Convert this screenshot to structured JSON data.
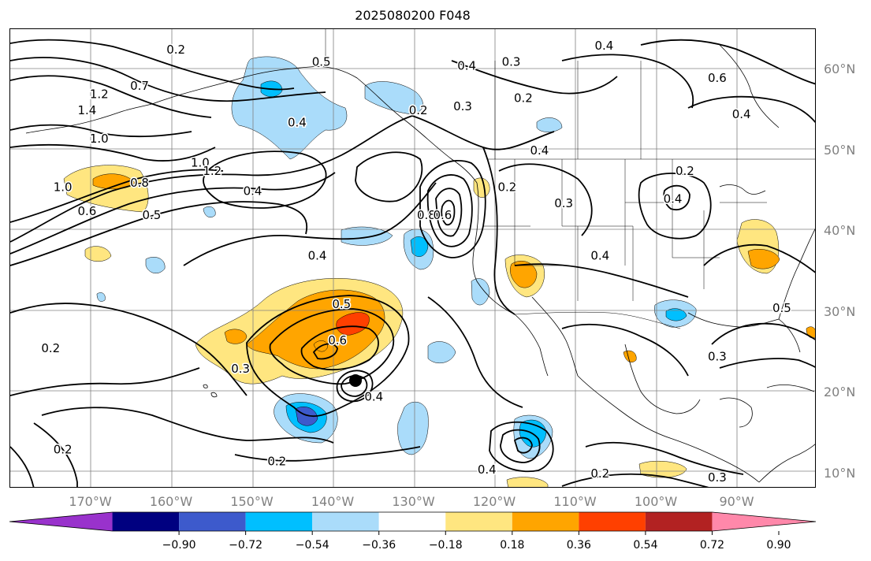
{
  "title": "2025080200 F048",
  "lat_labels": [
    {
      "text": "60°N",
      "lat": 60
    },
    {
      "text": "50°N",
      "lat": 50
    },
    {
      "text": "40°N",
      "lat": 40
    },
    {
      "text": "30°N",
      "lat": 30
    },
    {
      "text": "20°N",
      "lat": 20
    },
    {
      "text": "10°N",
      "lat": 10
    }
  ],
  "lon_labels": [
    {
      "text": "170°W",
      "lon": -170
    },
    {
      "text": "160°W",
      "lon": -160
    },
    {
      "text": "150°W",
      "lon": -150
    },
    {
      "text": "140°W",
      "lon": -140
    },
    {
      "text": "130°W",
      "lon": -130
    },
    {
      "text": "120°W",
      "lon": -120
    },
    {
      "text": "110°W",
      "lon": -110
    },
    {
      "text": "100°W",
      "lon": -100
    },
    {
      "text": "90°W",
      "lon": -90
    }
  ],
  "colorbar": {
    "levels": [
      -0.9,
      -0.72,
      -0.54,
      -0.36,
      -0.18,
      0.18,
      0.36,
      0.54,
      0.72,
      0.9
    ],
    "tick_labels": [
      "−0.90",
      "−0.72",
      "−0.54",
      "−0.36",
      "−0.18",
      "0.18",
      "0.36",
      "0.54",
      "0.72",
      "0.90"
    ],
    "colors": [
      "#9932cc",
      "#000080",
      "#3d5acc",
      "#00bfff",
      "#aadcfa",
      "#ffffff",
      "#ffe680",
      "#ffa500",
      "#ff4000",
      "#b22222",
      "#ff88aa"
    ],
    "extend": "both"
  },
  "contour_labels": [
    {
      "text": "0.2",
      "lon": -159.5,
      "lat": 62.5
    },
    {
      "text": "0.5",
      "lon": -141.5,
      "lat": 61.0
    },
    {
      "text": "0.4",
      "lon": -123.5,
      "lat": 60.5
    },
    {
      "text": "0.3",
      "lon": -118.0,
      "lat": 61.0
    },
    {
      "text": "0.4",
      "lon": -106.5,
      "lat": 63.0
    },
    {
      "text": "0.6",
      "lon": -92.5,
      "lat": 59.0
    },
    {
      "text": "0.7",
      "lon": -164.0,
      "lat": 58.0
    },
    {
      "text": "1.2",
      "lon": -169.0,
      "lat": 57.0
    },
    {
      "text": "1.4",
      "lon": -170.5,
      "lat": 55.0
    },
    {
      "text": "0.4",
      "lon": -144.5,
      "lat": 53.5
    },
    {
      "text": "0.2",
      "lon": -129.5,
      "lat": 55.0
    },
    {
      "text": "0.3",
      "lon": -124.0,
      "lat": 55.5
    },
    {
      "text": "0.2",
      "lon": -116.5,
      "lat": 56.5
    },
    {
      "text": "0.4",
      "lon": -114.5,
      "lat": 50.0
    },
    {
      "text": "0.4",
      "lon": -89.5,
      "lat": 54.5
    },
    {
      "text": "1.0",
      "lon": -169.0,
      "lat": 51.5
    },
    {
      "text": "1.0",
      "lon": -156.5,
      "lat": 48.5
    },
    {
      "text": "1.2",
      "lon": -155.0,
      "lat": 47.5
    },
    {
      "text": "0.8",
      "lon": -164.0,
      "lat": 46.0
    },
    {
      "text": "0.4",
      "lon": -150.0,
      "lat": 45.0
    },
    {
      "text": "1.0",
      "lon": -173.5,
      "lat": 45.5
    },
    {
      "text": "0.6",
      "lon": -170.5,
      "lat": 42.5
    },
    {
      "text": "0.5",
      "lon": -162.5,
      "lat": 42.0
    },
    {
      "text": "0.2",
      "lon": -118.5,
      "lat": 45.5
    },
    {
      "text": "0.3",
      "lon": -111.5,
      "lat": 43.5
    },
    {
      "text": "0.2",
      "lon": -96.5,
      "lat": 47.5
    },
    {
      "text": "0.4",
      "lon": -98.0,
      "lat": 44.0
    },
    {
      "text": "0.8",
      "lon": -128.5,
      "lat": 42.0
    },
    {
      "text": "0.6",
      "lon": -126.5,
      "lat": 42.0
    },
    {
      "text": "0.4",
      "lon": -142.0,
      "lat": 37.0
    },
    {
      "text": "0.4",
      "lon": -107.0,
      "lat": 37.0
    },
    {
      "text": "0.5",
      "lon": -139.0,
      "lat": 31.0
    },
    {
      "text": "0.6",
      "lon": -139.5,
      "lat": 26.5
    },
    {
      "text": "0.4",
      "lon": -135.0,
      "lat": 19.5
    },
    {
      "text": "0.3",
      "lon": -151.5,
      "lat": 23.0
    },
    {
      "text": "0.2",
      "lon": -175.0,
      "lat": 25.5
    },
    {
      "text": "0.3",
      "lon": -92.5,
      "lat": 24.5
    },
    {
      "text": "0.5",
      "lon": -84.5,
      "lat": 30.5
    },
    {
      "text": "0.2",
      "lon": -173.5,
      "lat": 13.0
    },
    {
      "text": "0.2",
      "lon": -147.0,
      "lat": 11.5
    },
    {
      "text": "0.2",
      "lon": -107.0,
      "lat": 10.0
    },
    {
      "text": "0.3",
      "lon": -92.5,
      "lat": 9.5
    },
    {
      "text": "0.4",
      "lon": -121.0,
      "lat": 10.5
    }
  ]
}
